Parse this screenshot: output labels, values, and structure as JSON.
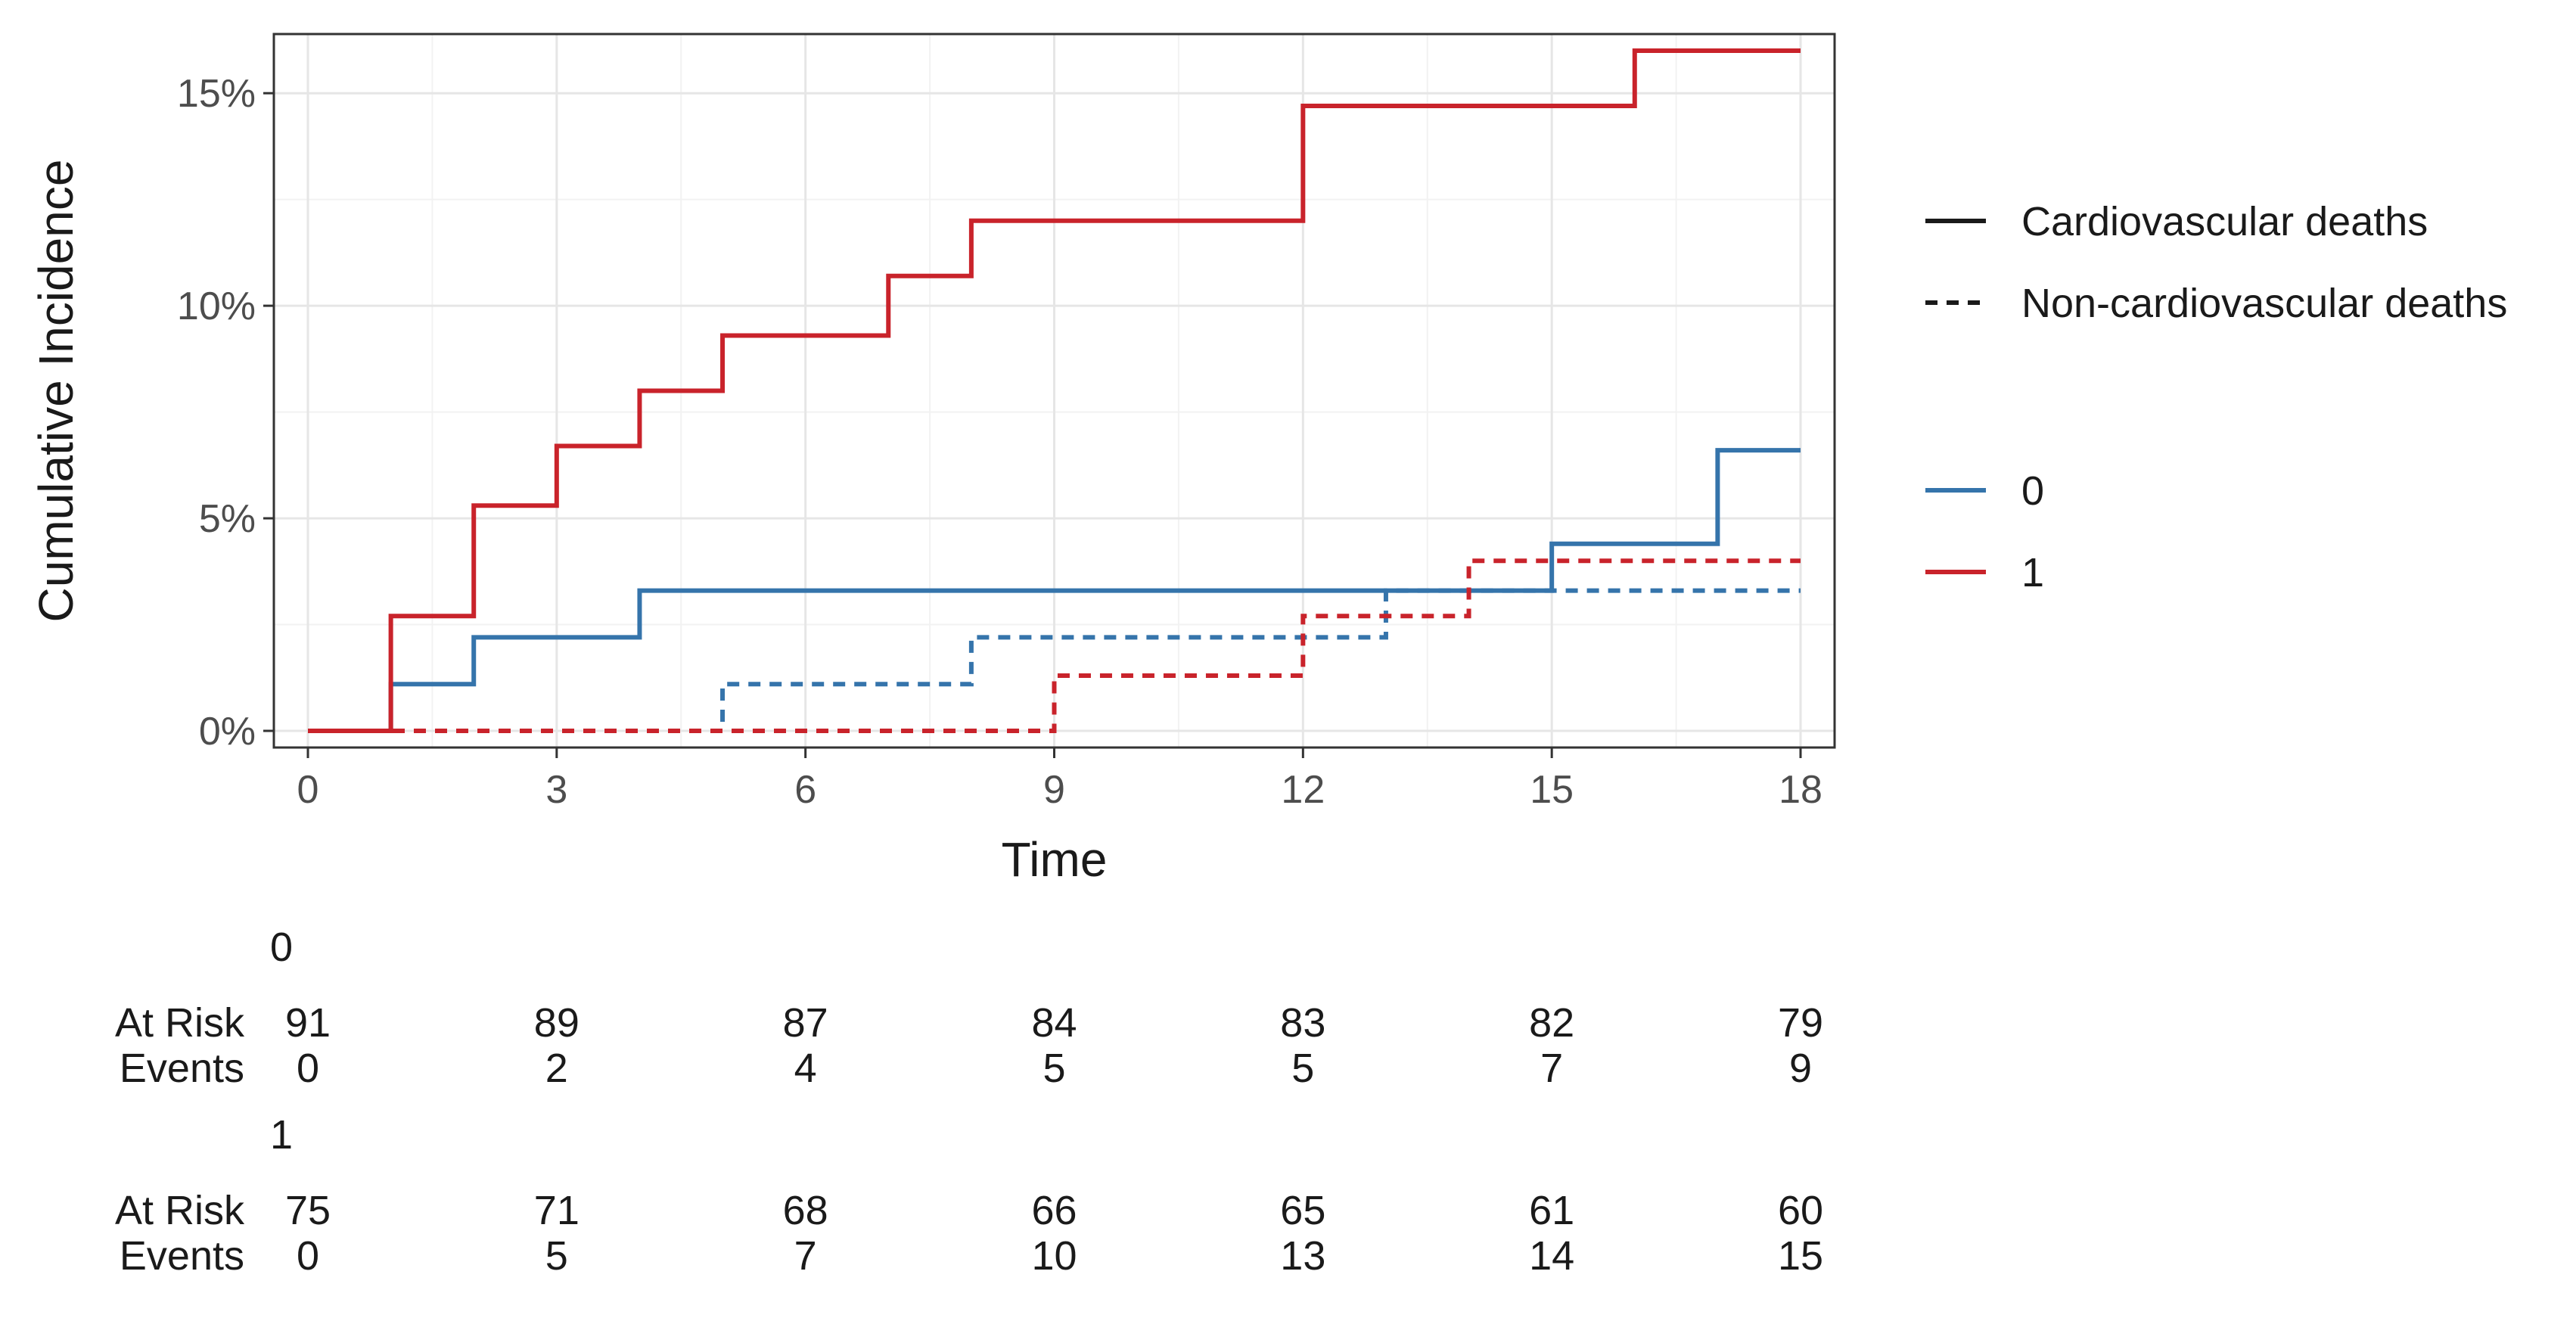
{
  "chart_data": {
    "type": "line",
    "step": true,
    "xlabel": "Time",
    "ylabel": "Cumulative Incidence",
    "xlim": [
      0,
      18
    ],
    "ylim": [
      0,
      0.16
    ],
    "x_ticks": [
      0,
      3,
      6,
      9,
      12,
      15,
      18
    ],
    "y_ticks": [
      0,
      0.05,
      0.1,
      0.15
    ],
    "y_tick_labels": [
      "0%",
      "5%",
      "10%",
      "15%"
    ],
    "grid": true,
    "legend_position": "right",
    "legend_linetype": [
      {
        "label": "Cardiovascular deaths",
        "dash": "solid"
      },
      {
        "label": "Non-cardiovascular deaths",
        "dash": "dashed"
      }
    ],
    "legend_group": [
      {
        "label": "0",
        "color": "#3574ab"
      },
      {
        "label": "1",
        "color": "#c9232b"
      }
    ],
    "series": [
      {
        "group": "0",
        "linetype": "solid",
        "color": "#3574ab",
        "x": [
          0,
          1,
          2,
          4,
          15,
          17,
          18
        ],
        "y": [
          0,
          0.011,
          0.022,
          0.033,
          0.044,
          0.066,
          0.066
        ]
      },
      {
        "group": "1",
        "linetype": "solid",
        "color": "#c9232b",
        "x": [
          0,
          1,
          2,
          3,
          4,
          5,
          7,
          8,
          12,
          16,
          18
        ],
        "y": [
          0,
          0.027,
          0.053,
          0.067,
          0.08,
          0.093,
          0.107,
          0.12,
          0.147,
          0.16,
          0.16
        ]
      },
      {
        "group": "0",
        "linetype": "dashed",
        "color": "#3574ab",
        "x": [
          0,
          5,
          8,
          13,
          18
        ],
        "y": [
          0,
          0.011,
          0.022,
          0.033,
          0.033
        ]
      },
      {
        "group": "1",
        "linetype": "dashed",
        "color": "#c9232b",
        "x": [
          0,
          9,
          12,
          14,
          18
        ],
        "y": [
          0,
          0.013,
          0.027,
          0.04,
          0.04
        ]
      }
    ],
    "risk_table": {
      "times": [
        0,
        3,
        6,
        9,
        12,
        15,
        18
      ],
      "row_labels": {
        "at_risk": "At Risk",
        "events": "Events"
      },
      "groups": [
        {
          "name": "0",
          "at_risk": [
            "91",
            "89",
            "87",
            "84",
            "83",
            "82",
            "79"
          ],
          "events": [
            "0",
            "2",
            "4",
            "5",
            "5",
            "7",
            "9"
          ]
        },
        {
          "name": "1",
          "at_risk": [
            "75",
            "71",
            "68",
            "66",
            "65",
            "61",
            "60"
          ],
          "events": [
            "0",
            "5",
            "7",
            "10",
            "13",
            "14",
            "15"
          ]
        }
      ]
    }
  }
}
